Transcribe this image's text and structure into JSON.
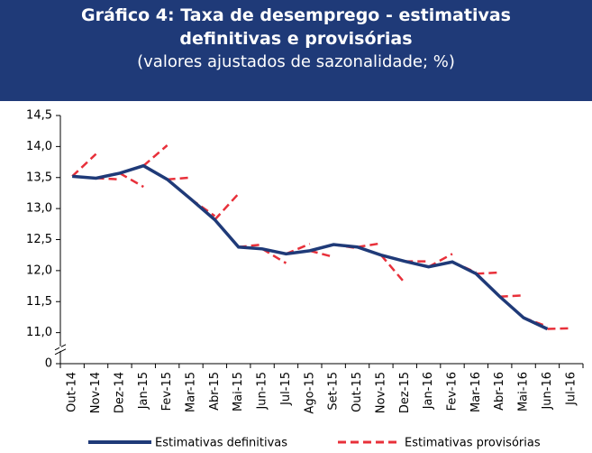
{
  "chart_data": {
    "type": "line",
    "title": "Gráfico 4: Taxa de desemprego - estimativas definitivas e provisórias",
    "subtitle": "(valores ajustados de sazonalidade; %)",
    "categories": [
      "Out-14",
      "Nov-14",
      "Dez-14",
      "Jan-15",
      "Fev-15",
      "Mar-15",
      "Abr-15",
      "Mai-15",
      "Jun-15",
      "Jul-15",
      "Ago-15",
      "Set-15",
      "Out-15",
      "Nov-15",
      "Dez-15",
      "Jan-16",
      "Fev-16",
      "Mar-16",
      "Abr-16",
      "Mai-16",
      "Jun-16",
      "Jul-16"
    ],
    "series": [
      {
        "name": "Estimativas definitivas",
        "color": "#1f3a78",
        "values": [
          13.52,
          13.49,
          13.57,
          13.69,
          13.47,
          13.15,
          12.82,
          12.38,
          12.35,
          12.27,
          12.32,
          12.42,
          12.38,
          12.25,
          12.15,
          12.06,
          12.14,
          11.95,
          11.58,
          11.24,
          11.06,
          null
        ]
      },
      {
        "name": "Estimativas provisórias",
        "color": "#e8303a",
        "values": [
          null,
          13.88,
          13.47,
          13.35,
          14.02,
          13.5,
          12.88,
          13.24,
          12.42,
          12.12,
          12.43,
          12.22,
          12.36,
          12.44,
          11.8,
          12.15,
          12.27,
          11.97,
          11.97,
          11.6,
          11.1,
          11.07
        ]
      }
    ],
    "ylim": [
      0,
      14.5
    ],
    "axis_break": [
      0,
      11.0
    ],
    "yticks": [
      {
        "value": 0,
        "label": "0"
      },
      {
        "value": 11.0,
        "label": "11,0"
      },
      {
        "value": 11.5,
        "label": "11,5"
      },
      {
        "value": 12.0,
        "label": "12,0"
      },
      {
        "value": 12.5,
        "label": "12,5"
      },
      {
        "value": 13.0,
        "label": "13,0"
      },
      {
        "value": 13.5,
        "label": "13,5"
      },
      {
        "value": 14.0,
        "label": "14,0"
      },
      {
        "value": 14.5,
        "label": "14,5"
      }
    ],
    "grid": false
  }
}
